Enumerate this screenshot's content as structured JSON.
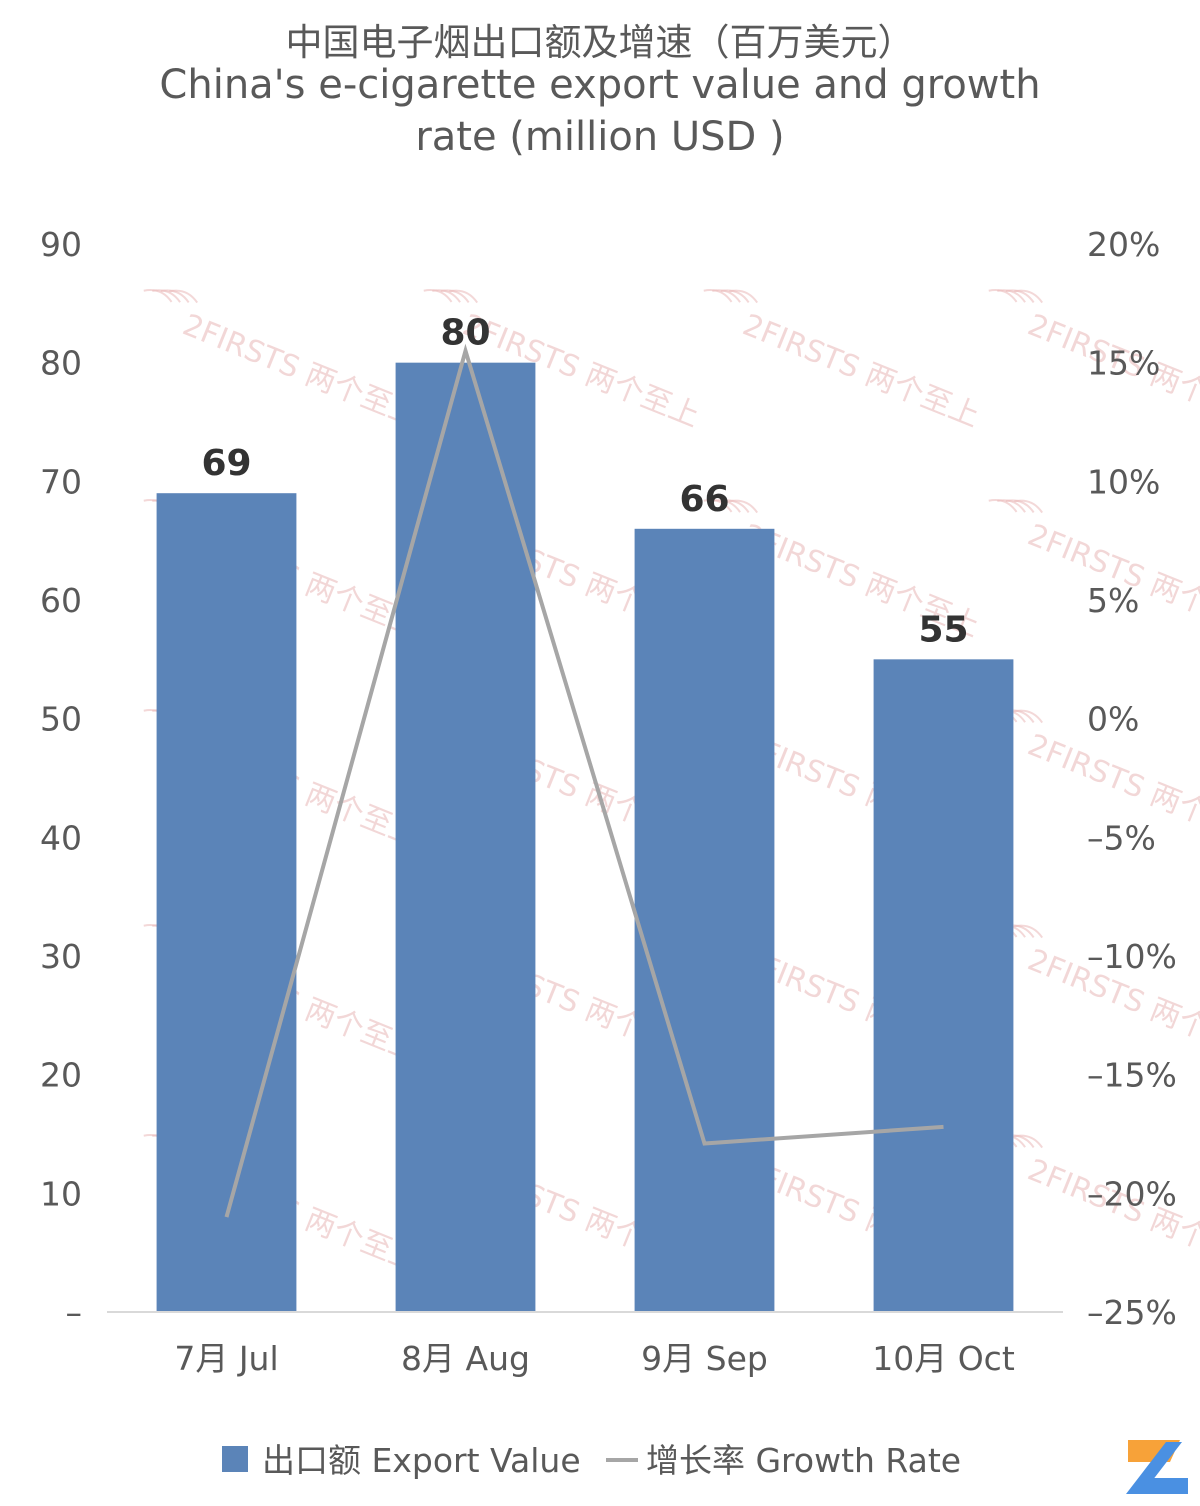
{
  "title": {
    "cn": "中国电子烟出口额及增速（百万美元）",
    "en_line1": "China's e-cigarette export value and growth",
    "en_line2": "rate (million USD )"
  },
  "watermark": "2FIRSTS 两个至上",
  "logo": {
    "name": "2firsts-logo",
    "colors": [
      "#f7a239",
      "#4a90e2"
    ]
  },
  "chart_data": {
    "type": "bar",
    "categories": [
      "7月 Jul",
      "8月 Aug",
      "9月 Sep",
      "10月 Oct"
    ],
    "series": [
      {
        "name": "出口额 Export Value",
        "kind": "bar",
        "axis": "left",
        "values": [
          69,
          80,
          66,
          55
        ],
        "data_labels": [
          "69",
          "80",
          "66",
          "55"
        ],
        "color": "#5b84b8"
      },
      {
        "name": "增长率 Growth Rate",
        "kind": "line",
        "axis": "right",
        "values": [
          -21.0,
          15.5,
          -17.9,
          -17.2
        ],
        "color": "#a6a6a6"
      }
    ],
    "y_left": {
      "ylim": [
        0,
        90
      ],
      "ticks": [
        "–",
        "10",
        "20",
        "30",
        "40",
        "50",
        "60",
        "70",
        "80",
        "90"
      ]
    },
    "y_right": {
      "ylim": [
        -25,
        20
      ],
      "ticks": [
        "–25%",
        "–20%",
        "–15%",
        "–10%",
        "–5%",
        "0%",
        "5%",
        "10%",
        "15%",
        "20%"
      ]
    },
    "grid": false,
    "legend": {
      "position": "bottom",
      "entries": [
        "出口额 Export Value",
        "增长率 Growth Rate"
      ]
    }
  }
}
